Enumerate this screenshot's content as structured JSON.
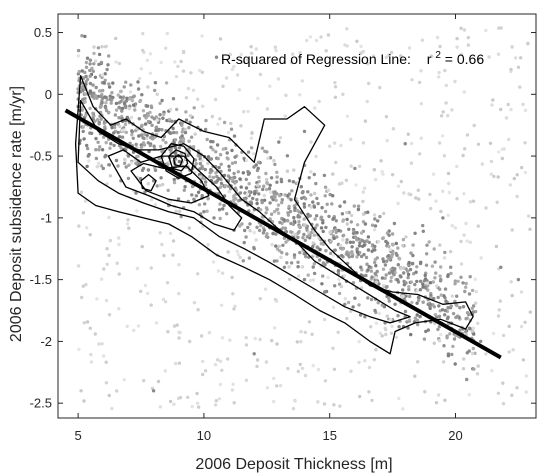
{
  "chart_data": {
    "type": "scatter",
    "xlabel": "2006 Deposit Thickness [m]",
    "ylabel": "2006 Deposit subsidence rate [m/yr]",
    "xlim": [
      4.2,
      23.2
    ],
    "ylim": [
      -2.62,
      0.65
    ],
    "xticks": [
      "5",
      "10",
      "15",
      "20"
    ],
    "yticks": [
      "0.5",
      "0",
      "-0.5",
      "-1",
      "-1.5",
      "-2",
      "-2.5"
    ],
    "xtick_values": [
      5,
      10,
      15,
      20
    ],
    "ytick_values": [
      0.5,
      0,
      -0.5,
      -1,
      -1.5,
      -2,
      -2.5
    ],
    "grid": false,
    "annotation": {
      "prefix": "R-squared of Regression Line:",
      "r_symbol": "r",
      "exponent": "2",
      "suffix": " = 0.66",
      "r_squared": 0.66
    },
    "regression_line": {
      "x": [
        4.5,
        21.8
      ],
      "y": [
        -0.13,
        -2.13
      ]
    },
    "scatter": {
      "description_values": "dense point cloud of observations along the trend",
      "points": [
        [
          5.2,
          -0.3
        ],
        [
          5.4,
          -0.5
        ],
        [
          5.6,
          -0.2
        ],
        [
          6.0,
          -0.6
        ],
        [
          6.3,
          -0.4
        ],
        [
          6.7,
          -0.7
        ],
        [
          7.0,
          -0.5
        ],
        [
          7.3,
          -0.8
        ],
        [
          7.6,
          -0.6
        ],
        [
          8.0,
          -0.7
        ],
        [
          8.3,
          -0.55
        ],
        [
          8.6,
          -0.9
        ],
        [
          9.0,
          -0.5
        ],
        [
          9.3,
          -0.7
        ],
        [
          9.6,
          -0.85
        ],
        [
          10.0,
          -0.95
        ],
        [
          10.4,
          -1.0
        ],
        [
          10.8,
          -0.9
        ],
        [
          11.2,
          -1.1
        ],
        [
          11.6,
          -1.2
        ],
        [
          12.0,
          -1.25
        ],
        [
          12.4,
          -1.1
        ],
        [
          12.8,
          -1.35
        ],
        [
          13.2,
          -1.4
        ],
        [
          13.6,
          -1.3
        ],
        [
          14.0,
          -1.5
        ],
        [
          14.4,
          -1.45
        ],
        [
          14.8,
          -1.6
        ],
        [
          15.2,
          -1.55
        ],
        [
          15.6,
          -1.7
        ],
        [
          16.0,
          -1.65
        ],
        [
          16.4,
          -1.8
        ],
        [
          16.8,
          -1.75
        ],
        [
          17.2,
          -1.85
        ],
        [
          17.6,
          -1.7
        ],
        [
          18.0,
          -1.8
        ],
        [
          18.5,
          -1.75
        ],
        [
          19.0,
          -1.7
        ],
        [
          19.6,
          -1.75
        ],
        [
          20.3,
          -1.9
        ],
        [
          21.0,
          -2.0
        ],
        [
          21.8,
          -1.4
        ],
        [
          22.5,
          -1.5
        ],
        [
          16.0,
          -0.6
        ],
        [
          18.0,
          -0.4
        ],
        [
          19.5,
          -1.0
        ],
        [
          12.0,
          -2.1
        ],
        [
          8.0,
          -2.4
        ],
        [
          10.5,
          0.3
        ],
        [
          14.0,
          -0.3
        ]
      ]
    },
    "contours": [
      [
        [
          5.0,
          -0.8
        ],
        [
          4.9,
          -0.4
        ],
        [
          5.1,
          0.15
        ],
        [
          5.6,
          -0.1
        ],
        [
          6.3,
          -0.25
        ],
        [
          6.9,
          -0.2
        ],
        [
          7.6,
          -0.3
        ],
        [
          8.3,
          -0.35
        ],
        [
          9.0,
          -0.2
        ],
        [
          10.0,
          -0.3
        ],
        [
          11.0,
          -0.35
        ],
        [
          12.0,
          -0.55
        ],
        [
          12.4,
          -0.2
        ],
        [
          13.3,
          -0.2
        ],
        [
          14.0,
          -0.1
        ],
        [
          14.8,
          -0.25
        ],
        [
          14.0,
          -0.55
        ],
        [
          13.6,
          -0.85
        ],
        [
          14.4,
          -1.1
        ],
        [
          15.0,
          -1.25
        ],
        [
          15.8,
          -1.4
        ],
        [
          16.6,
          -1.55
        ],
        [
          17.5,
          -1.6
        ],
        [
          18.5,
          -1.62
        ],
        [
          19.5,
          -1.7
        ],
        [
          20.4,
          -1.68
        ],
        [
          20.7,
          -1.8
        ],
        [
          20.4,
          -1.9
        ],
        [
          19.4,
          -1.82
        ],
        [
          18.4,
          -1.85
        ],
        [
          17.6,
          -1.92
        ],
        [
          17.4,
          -2.1
        ],
        [
          16.6,
          -2.0
        ],
        [
          15.6,
          -1.85
        ],
        [
          14.6,
          -1.75
        ],
        [
          13.6,
          -1.62
        ],
        [
          12.6,
          -1.5
        ],
        [
          11.6,
          -1.4
        ],
        [
          10.5,
          -1.3
        ],
        [
          9.5,
          -1.15
        ],
        [
          8.6,
          -1.05
        ],
        [
          7.6,
          -1.0
        ],
        [
          6.6,
          -0.95
        ],
        [
          5.7,
          -0.9
        ],
        [
          5.0,
          -0.8
        ]
      ],
      [
        [
          5.0,
          -0.55
        ],
        [
          5.1,
          -0.05
        ],
        [
          5.8,
          -0.3
        ],
        [
          6.6,
          -0.4
        ],
        [
          7.4,
          -0.45
        ],
        [
          8.2,
          -0.45
        ],
        [
          9.2,
          -0.4
        ],
        [
          10.0,
          -0.5
        ],
        [
          10.7,
          -0.65
        ],
        [
          11.5,
          -0.85
        ],
        [
          12.2,
          -0.95
        ],
        [
          12.9,
          -1.08
        ],
        [
          13.7,
          -1.2
        ],
        [
          14.4,
          -1.35
        ],
        [
          15.2,
          -1.45
        ],
        [
          16.0,
          -1.55
        ],
        [
          16.8,
          -1.65
        ],
        [
          17.6,
          -1.75
        ],
        [
          18.2,
          -1.8
        ],
        [
          17.4,
          -1.85
        ],
        [
          16.6,
          -1.8
        ],
        [
          15.6,
          -1.72
        ],
        [
          14.6,
          -1.6
        ],
        [
          13.6,
          -1.48
        ],
        [
          12.6,
          -1.36
        ],
        [
          11.6,
          -1.25
        ],
        [
          10.6,
          -1.15
        ],
        [
          9.6,
          -1.0
        ],
        [
          8.6,
          -0.95
        ],
        [
          7.6,
          -0.88
        ],
        [
          6.6,
          -0.8
        ],
        [
          5.8,
          -0.7
        ],
        [
          5.0,
          -0.55
        ]
      ],
      [
        [
          6.2,
          -0.5
        ],
        [
          6.8,
          -0.45
        ],
        [
          7.5,
          -0.55
        ],
        [
          8.3,
          -0.5
        ],
        [
          9.2,
          -0.5
        ],
        [
          9.8,
          -0.62
        ],
        [
          10.5,
          -0.75
        ],
        [
          11.0,
          -0.9
        ],
        [
          11.5,
          -1.0
        ],
        [
          11.2,
          -1.1
        ],
        [
          10.4,
          -1.05
        ],
        [
          9.6,
          -0.95
        ],
        [
          8.7,
          -0.9
        ],
        [
          7.8,
          -0.82
        ],
        [
          6.9,
          -0.75
        ],
        [
          6.2,
          -0.5
        ]
      ],
      [
        [
          7.1,
          -0.62
        ],
        [
          7.6,
          -0.56
        ],
        [
          8.4,
          -0.6
        ],
        [
          9.3,
          -0.58
        ],
        [
          9.9,
          -0.7
        ],
        [
          10.2,
          -0.82
        ],
        [
          9.5,
          -0.88
        ],
        [
          8.6,
          -0.85
        ],
        [
          7.7,
          -0.78
        ],
        [
          7.1,
          -0.62
        ]
      ],
      [
        [
          8.3,
          -0.5
        ],
        [
          8.7,
          -0.4
        ],
        [
          9.2,
          -0.42
        ],
        [
          9.6,
          -0.52
        ],
        [
          9.5,
          -0.64
        ],
        [
          9.0,
          -0.68
        ],
        [
          8.5,
          -0.62
        ],
        [
          8.3,
          -0.5
        ]
      ],
      [
        [
          8.6,
          -0.5
        ],
        [
          8.9,
          -0.45
        ],
        [
          9.25,
          -0.48
        ],
        [
          9.35,
          -0.56
        ],
        [
          9.1,
          -0.62
        ],
        [
          8.75,
          -0.6
        ],
        [
          8.6,
          -0.5
        ]
      ],
      [
        [
          8.8,
          -0.52
        ],
        [
          9.0,
          -0.49
        ],
        [
          9.15,
          -0.53
        ],
        [
          9.05,
          -0.58
        ],
        [
          8.85,
          -0.57
        ],
        [
          8.8,
          -0.52
        ]
      ],
      [
        [
          7.5,
          -0.7
        ],
        [
          7.8,
          -0.65
        ],
        [
          8.1,
          -0.7
        ],
        [
          7.9,
          -0.78
        ],
        [
          7.55,
          -0.76
        ],
        [
          7.5,
          -0.7
        ]
      ]
    ]
  }
}
